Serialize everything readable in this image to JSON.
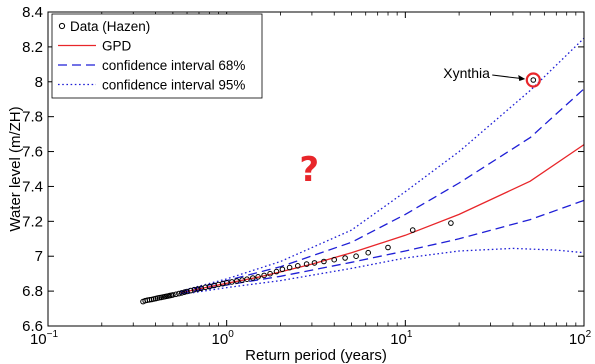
{
  "chart_data": {
    "type": "scatter",
    "title": "",
    "xlabel": "Return period (years)",
    "ylabel": "Water level (m/ZH)",
    "x_scale": "log",
    "xlim": [
      0.1,
      100
    ],
    "ylim": [
      6.6,
      8.4
    ],
    "x_ticks": [
      {
        "base": "10",
        "exp": "−1",
        "value": 0.1
      },
      {
        "base": "10",
        "exp": "0",
        "value": 1
      },
      {
        "base": "10",
        "exp": "1",
        "value": 10
      },
      {
        "base": "10",
        "exp": "2",
        "value": 100
      }
    ],
    "y_ticks": [
      {
        "label": "6.6",
        "value": 6.6
      },
      {
        "label": "6.8",
        "value": 6.8
      },
      {
        "label": "7",
        "value": 7.0
      },
      {
        "label": "7.2",
        "value": 7.2
      },
      {
        "label": "7.4",
        "value": 7.4
      },
      {
        "label": "7.6",
        "value": 7.6
      },
      {
        "label": "7.8",
        "value": 7.8
      },
      {
        "label": "8",
        "value": 8.0
      },
      {
        "label": "8.2",
        "value": 8.2
      },
      {
        "label": "8.4",
        "value": 8.4
      }
    ],
    "grid": false,
    "legend_position": "top-left",
    "legend": [
      {
        "key": "data",
        "label": "Data (Hazen)",
        "style": "circle",
        "color": "#000000"
      },
      {
        "key": "gpd",
        "label": "GPD",
        "style": "solid",
        "color": "#e8262a"
      },
      {
        "key": "ci68",
        "label": "confidence interval 68%",
        "style": "dashed",
        "color": "#1f1fd6"
      },
      {
        "key": "ci95",
        "label": "confidence interval 95%",
        "style": "dotted",
        "color": "#1f1fd6"
      }
    ],
    "series": [
      {
        "key": "data",
        "points": [
          {
            "x": 0.34,
            "y": 6.74
          },
          {
            "x": 0.35,
            "y": 6.745
          },
          {
            "x": 0.36,
            "y": 6.748
          },
          {
            "x": 0.37,
            "y": 6.75
          },
          {
            "x": 0.38,
            "y": 6.752
          },
          {
            "x": 0.39,
            "y": 6.755
          },
          {
            "x": 0.4,
            "y": 6.757
          },
          {
            "x": 0.41,
            "y": 6.76
          },
          {
            "x": 0.42,
            "y": 6.762
          },
          {
            "x": 0.43,
            "y": 6.764
          },
          {
            "x": 0.44,
            "y": 6.766
          },
          {
            "x": 0.45,
            "y": 6.768
          },
          {
            "x": 0.46,
            "y": 6.77
          },
          {
            "x": 0.47,
            "y": 6.772
          },
          {
            "x": 0.48,
            "y": 6.774
          },
          {
            "x": 0.49,
            "y": 6.776
          },
          {
            "x": 0.5,
            "y": 6.778
          },
          {
            "x": 0.52,
            "y": 6.782
          },
          {
            "x": 0.54,
            "y": 6.786
          },
          {
            "x": 0.56,
            "y": 6.79
          },
          {
            "x": 0.58,
            "y": 6.794
          },
          {
            "x": 0.6,
            "y": 6.798
          },
          {
            "x": 0.63,
            "y": 6.803
          },
          {
            "x": 0.66,
            "y": 6.808
          },
          {
            "x": 0.69,
            "y": 6.812
          },
          {
            "x": 0.72,
            "y": 6.816
          },
          {
            "x": 0.76,
            "y": 6.822
          },
          {
            "x": 0.8,
            "y": 6.826
          },
          {
            "x": 0.85,
            "y": 6.832
          },
          {
            "x": 0.9,
            "y": 6.838
          },
          {
            "x": 0.95,
            "y": 6.843
          },
          {
            "x": 1.0,
            "y": 6.848
          },
          {
            "x": 1.07,
            "y": 6.853
          },
          {
            "x": 1.14,
            "y": 6.858
          },
          {
            "x": 1.22,
            "y": 6.863
          },
          {
            "x": 1.3,
            "y": 6.868
          },
          {
            "x": 1.4,
            "y": 6.875
          },
          {
            "x": 1.5,
            "y": 6.882
          },
          {
            "x": 1.62,
            "y": 6.89
          },
          {
            "x": 1.75,
            "y": 6.9
          },
          {
            "x": 1.9,
            "y": 6.912
          },
          {
            "x": 2.05,
            "y": 6.925
          },
          {
            "x": 2.25,
            "y": 6.935
          },
          {
            "x": 2.5,
            "y": 6.945
          },
          {
            "x": 2.8,
            "y": 6.955
          },
          {
            "x": 3.1,
            "y": 6.962
          },
          {
            "x": 3.5,
            "y": 6.97
          },
          {
            "x": 4.0,
            "y": 6.98
          },
          {
            "x": 4.6,
            "y": 6.99
          },
          {
            "x": 5.3,
            "y": 7.0
          },
          {
            "x": 6.2,
            "y": 7.02
          },
          {
            "x": 8.0,
            "y": 7.05
          },
          {
            "x": 11.0,
            "y": 7.15
          },
          {
            "x": 18.0,
            "y": 7.19
          },
          {
            "x": 52.0,
            "y": 8.01
          }
        ]
      },
      {
        "key": "gpd",
        "points": [
          {
            "x": 0.55,
            "y": 6.79
          },
          {
            "x": 0.8,
            "y": 6.825
          },
          {
            "x": 1.0,
            "y": 6.845
          },
          {
            "x": 1.5,
            "y": 6.88
          },
          {
            "x": 2.0,
            "y": 6.91
          },
          {
            "x": 3.0,
            "y": 6.955
          },
          {
            "x": 5.0,
            "y": 7.02
          },
          {
            "x": 10.0,
            "y": 7.12
          },
          {
            "x": 20.0,
            "y": 7.24
          },
          {
            "x": 50.0,
            "y": 7.43
          },
          {
            "x": 100.0,
            "y": 7.64
          }
        ]
      },
      {
        "key": "ci68_upper",
        "points": [
          {
            "x": 0.55,
            "y": 6.795
          },
          {
            "x": 1.0,
            "y": 6.86
          },
          {
            "x": 2.0,
            "y": 6.94
          },
          {
            "x": 5.0,
            "y": 7.08
          },
          {
            "x": 10.0,
            "y": 7.24
          },
          {
            "x": 20.0,
            "y": 7.42
          },
          {
            "x": 50.0,
            "y": 7.68
          },
          {
            "x": 100.0,
            "y": 7.96
          }
        ]
      },
      {
        "key": "ci68_lower",
        "points": [
          {
            "x": 0.55,
            "y": 6.785
          },
          {
            "x": 1.0,
            "y": 6.835
          },
          {
            "x": 2.0,
            "y": 6.885
          },
          {
            "x": 5.0,
            "y": 6.965
          },
          {
            "x": 10.0,
            "y": 7.03
          },
          {
            "x": 20.0,
            "y": 7.1
          },
          {
            "x": 50.0,
            "y": 7.21
          },
          {
            "x": 100.0,
            "y": 7.32
          }
        ]
      },
      {
        "key": "ci95_upper",
        "points": [
          {
            "x": 0.55,
            "y": 6.8
          },
          {
            "x": 1.0,
            "y": 6.87
          },
          {
            "x": 2.0,
            "y": 6.97
          },
          {
            "x": 5.0,
            "y": 7.15
          },
          {
            "x": 10.0,
            "y": 7.37
          },
          {
            "x": 20.0,
            "y": 7.6
          },
          {
            "x": 50.0,
            "y": 7.95
          },
          {
            "x": 100.0,
            "y": 8.25
          }
        ]
      },
      {
        "key": "ci95_lower",
        "points": [
          {
            "x": 0.55,
            "y": 6.78
          },
          {
            "x": 1.0,
            "y": 6.82
          },
          {
            "x": 2.0,
            "y": 6.86
          },
          {
            "x": 5.0,
            "y": 6.93
          },
          {
            "x": 10.0,
            "y": 6.99
          },
          {
            "x": 20.0,
            "y": 7.03
          },
          {
            "x": 40.0,
            "y": 7.045
          },
          {
            "x": 70.0,
            "y": 7.035
          },
          {
            "x": 100.0,
            "y": 7.02
          }
        ]
      }
    ],
    "annotations": [
      {
        "label": "Xynthia",
        "x": 52.0,
        "y": 8.01,
        "highlight_color": "#e8262a"
      },
      {
        "label": "?",
        "x": 2.9,
        "y": 7.5,
        "color": "#e8262a"
      }
    ]
  }
}
